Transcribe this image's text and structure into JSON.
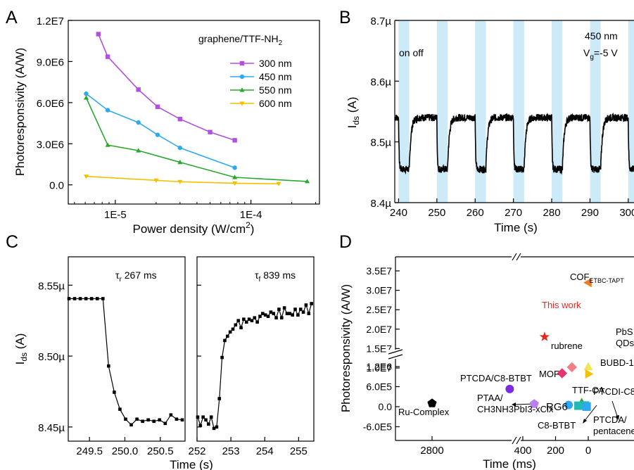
{
  "colors": {
    "purple": "#b04fe0",
    "blue": "#2ea8f0",
    "green": "#2aa82e",
    "yellow": "#f2c200",
    "band": "#cdeaf8",
    "red": "#e8261e",
    "orange": "#ef7b22",
    "pink": "#ee7f86",
    "lime": "#f0e45a",
    "magenta": "#e9356c",
    "violet": "#7b2ce3",
    "lavender": "#b97ff2",
    "teal": "#23b9b4"
  },
  "chart_data": [
    {
      "panel": "A",
      "type": "line",
      "xlabel": "Power density (W/cm",
      "xlabel_sup": "2",
      "xlabel_end": ")",
      "ylabel": "Photoresponsivity (A/W)",
      "xscale": "log",
      "xlim": [
        4.5e-06,
        0.00032
      ],
      "ylim": [
        -1400000,
        12000000
      ],
      "xticks": [
        {
          "v": 1e-05,
          "label": "1E-5"
        },
        {
          "v": 0.0001,
          "label": "1E-4"
        }
      ],
      "yticks": [
        {
          "v": 0,
          "label": "0.0"
        },
        {
          "v": 3000000,
          "label": "3.0E6"
        },
        {
          "v": 6000000,
          "label": "6.0E6"
        },
        {
          "v": 9000000,
          "label": "9.0E6"
        },
        {
          "v": 12000000,
          "label": "1.2E7"
        }
      ],
      "legend_title": "graphene/TTF-NH",
      "legend_title_sub": "2",
      "legend_position": "top-right",
      "series": [
        {
          "name": "300 nm",
          "color_key": "purple",
          "marker": "square",
          "x": [
            7.5e-06,
            8.8e-06,
            1.48e-05,
            2.05e-05,
            3e-05,
            5e-05,
            7.6e-05
          ],
          "y": [
            11000000,
            9350000,
            6950000,
            5700000,
            4800000,
            3850000,
            3250000
          ]
        },
        {
          "name": "450 nm",
          "color_key": "blue",
          "marker": "circle",
          "x": [
            6.1e-06,
            8.8e-06,
            1.48e-05,
            2.05e-05,
            3e-05,
            7.6e-05
          ],
          "y": [
            6650000,
            5450000,
            4550000,
            3650000,
            2700000,
            1250000
          ]
        },
        {
          "name": "550 nm",
          "color_key": "green",
          "marker": "triangle-up",
          "x": [
            6.1e-06,
            8.8e-06,
            1.48e-05,
            3e-05,
            7.6e-05,
            0.00026
          ],
          "y": [
            6350000,
            2900000,
            2500000,
            1650000,
            550000,
            250000
          ]
        },
        {
          "name": "600 nm",
          "color_key": "yellow",
          "marker": "triangle-down",
          "x": [
            6.1e-06,
            2e-05,
            3e-05,
            7.6e-05,
            0.00016
          ],
          "y": [
            620000,
            330000,
            230000,
            120000,
            80000
          ]
        }
      ]
    },
    {
      "panel": "B",
      "type": "line",
      "xlabel": "Time (s)",
      "ylabel": "I",
      "ylabel_sub": "ds",
      "ylabel_end": " (A)",
      "xlim": [
        239,
        301.5
      ],
      "ylim": [
        8.4,
        8.7
      ],
      "xticks": [
        {
          "v": 240,
          "label": "240"
        },
        {
          "v": 250,
          "label": "250"
        },
        {
          "v": 260,
          "label": "260"
        },
        {
          "v": 270,
          "label": "270"
        },
        {
          "v": 280,
          "label": "280"
        },
        {
          "v": 290,
          "label": "290"
        },
        {
          "v": 300,
          "label": "300"
        }
      ],
      "yticks": [
        {
          "v": 8.4,
          "label": "8.4µ"
        },
        {
          "v": 8.5,
          "label": "8.5µ"
        },
        {
          "v": 8.6,
          "label": "8.6µ"
        },
        {
          "v": 8.7,
          "label": "8.7µ"
        }
      ],
      "annotations": {
        "on_off": "on off",
        "wavelength": "450 nm",
        "gate_v": "V",
        "gate_sub": "g",
        "gate_val": "=-5 V"
      },
      "light_on_intervals": [
        [
          240,
          242.8
        ],
        [
          250,
          252.8
        ],
        [
          260,
          262.8
        ],
        [
          270,
          272.8
        ],
        [
          280,
          282.8
        ],
        [
          290,
          292.8
        ],
        [
          300,
          302.8
        ]
      ],
      "off_level": 8.54,
      "on_level": 8.455
    },
    {
      "panel": "C-left",
      "type": "line",
      "ylabel": "I",
      "ylabel_sub": "ds",
      "ylabel_end": " (A)",
      "xlim": [
        249.2,
        250.85
      ],
      "ylim": [
        8.44,
        8.57
      ],
      "xticks": [
        {
          "v": 249.5,
          "label": "249.5"
        },
        {
          "v": 250.0,
          "label": "250.0"
        },
        {
          "v": 250.5,
          "label": "250.5"
        }
      ],
      "yticks": [
        {
          "v": 8.45,
          "label": "8.45µ"
        },
        {
          "v": 8.5,
          "label": "8.50µ"
        },
        {
          "v": 8.55,
          "label": "8.55µ"
        }
      ],
      "annotation": {
        "symbol": "τ",
        "sub": "r",
        "text": " 267 ms"
      },
      "x": [
        249.21,
        249.29,
        249.37,
        249.45,
        249.53,
        249.61,
        249.69,
        249.77,
        249.85,
        249.93,
        250.01,
        250.09,
        250.17,
        250.25,
        250.33,
        250.41,
        250.49,
        250.57,
        250.65,
        250.73,
        250.81
      ],
      "y": [
        8.5405,
        8.5405,
        8.5405,
        8.5405,
        8.5405,
        8.5405,
        8.5405,
        8.493,
        8.4745,
        8.4625,
        8.4555,
        8.4515,
        8.4555,
        8.454,
        8.455,
        8.454,
        8.455,
        8.4525,
        8.4585,
        8.4555,
        8.455
      ]
    },
    {
      "panel": "C-right",
      "type": "line",
      "xlabel": "Time (s)",
      "xlim": [
        252,
        255.45
      ],
      "ylim": [
        8.44,
        8.57
      ],
      "xticks": [
        {
          "v": 252,
          "label": "252"
        },
        {
          "v": 253,
          "label": "253"
        },
        {
          "v": 254,
          "label": "254"
        },
        {
          "v": 255,
          "label": "255"
        }
      ],
      "yticks": [
        {
          "v": 8.45,
          "label": ""
        },
        {
          "v": 8.5,
          "label": ""
        },
        {
          "v": 8.55,
          "label": ""
        }
      ],
      "annotation": {
        "symbol": "τ",
        "sub": "f",
        "text": " 839 ms"
      },
      "x": [
        252.02,
        252.1,
        252.18,
        252.26,
        252.34,
        252.42,
        252.5,
        252.58,
        252.66,
        252.74,
        252.82,
        252.9,
        252.98,
        253.06,
        253.14,
        253.22,
        253.3,
        253.38,
        253.46,
        253.54,
        253.62,
        253.7,
        253.78,
        253.86,
        253.94,
        254.02,
        254.1,
        254.18,
        254.26,
        254.34,
        254.42,
        254.5,
        254.58,
        254.66,
        254.74,
        254.82,
        254.9,
        254.98,
        255.06,
        255.14,
        255.22,
        255.3,
        255.38
      ],
      "y": [
        8.457,
        8.451,
        8.457,
        8.455,
        8.452,
        8.457,
        8.449,
        8.45,
        8.47,
        8.499,
        8.511,
        8.514,
        8.517,
        8.519,
        8.522,
        8.525,
        8.52,
        8.526,
        8.524,
        8.526,
        8.525,
        8.527,
        8.524,
        8.528,
        8.53,
        8.529,
        8.528,
        8.531,
        8.53,
        8.527,
        8.533,
        8.527,
        8.534,
        8.53,
        8.53,
        8.529,
        8.533,
        8.529,
        8.533,
        8.531,
        8.536,
        8.53,
        8.537
      ]
    },
    {
      "panel": "D",
      "type": "scatter",
      "xlabel": "Time (ms)",
      "ylabel": "Photoresponsivity (A/W)",
      "xticks": [
        {
          "v": 2800,
          "label": "2800"
        },
        {
          "v": 400,
          "label": "400"
        },
        {
          "v": 200,
          "label": "200"
        },
        {
          "v": 0,
          "label": "0"
        }
      ],
      "yticks_upper": [
        {
          "v": 10000000,
          "label": "1.0E7"
        },
        {
          "v": 15000000,
          "label": "1.5E7"
        },
        {
          "v": 20000000,
          "label": "2.0E7"
        },
        {
          "v": 25000000,
          "label": "2.5E7"
        },
        {
          "v": 30000000,
          "label": "3.0E7"
        },
        {
          "v": 35000000,
          "label": "3.5E7"
        }
      ],
      "yticks_lower": [
        {
          "v": -600000,
          "label": "-6.0E5"
        },
        {
          "v": 0,
          "label": "0.0"
        },
        {
          "v": 600000,
          "label": "6.0E5"
        },
        {
          "v": 1200000,
          "label": "1.2E6"
        }
      ],
      "points": [
        {
          "label": "COF",
          "label_sub": "ETBC-TAPT",
          "x": 0,
          "y": 32000000,
          "marker": "triangle-left",
          "color_key": "orange"
        },
        {
          "label": "This work",
          "x": 267,
          "y": 18000000,
          "marker": "star",
          "color_key": "red"
        },
        {
          "label": "rubrene",
          "x": 100,
          "y": 10200000,
          "marker": "diamond",
          "color_key": "pink"
        },
        {
          "label": "PbS",
          "label2": "QDs",
          "x": 0,
          "y": 10300000,
          "marker": "triangle-up",
          "color_key": "lime"
        },
        {
          "label": "MOF",
          "x": 160,
          "y": 1000000,
          "marker": "diamond",
          "color_key": "magenta"
        },
        {
          "label": "BUBD-1",
          "x": -2,
          "y": 980000,
          "marker": "triangle-right",
          "color_key": "yellow"
        },
        {
          "label": "PTCDA/C8-BTBT",
          "x": 480,
          "y": 530000,
          "marker": "circle",
          "color_key": "violet"
        },
        {
          "label": "TTF-CA",
          "x": 40,
          "y": 120000,
          "marker": "triangle-up",
          "color_key": "green"
        },
        {
          "label": "PTCDI-C8",
          "x": 20,
          "y": 60000,
          "marker": "triangle-down",
          "color_key": "teal"
        },
        {
          "label": "PTAA/",
          "label2": "CH3NH3PbI3-xClx",
          "x": 330,
          "y": 80000,
          "marker": "pentagon",
          "color_key": "lavender"
        },
        {
          "label": "RG6",
          "x": 120,
          "y": 50000,
          "marker": "circle",
          "color_key": "blue"
        },
        {
          "label": "C8-BTBT",
          "x": 60,
          "y": 30000,
          "marker": "square",
          "color_key": "teal"
        },
        {
          "label": "PTCDA/",
          "label2": "pentacene",
          "x": 10,
          "y": 0,
          "marker": "square",
          "color_key": "blue"
        },
        {
          "label": "Ru-Complex",
          "x": 2800,
          "y": 100000,
          "marker": "pentagon",
          "color_key": "black"
        }
      ]
    }
  ],
  "panel_letters": [
    "A",
    "B",
    "C",
    "D"
  ]
}
